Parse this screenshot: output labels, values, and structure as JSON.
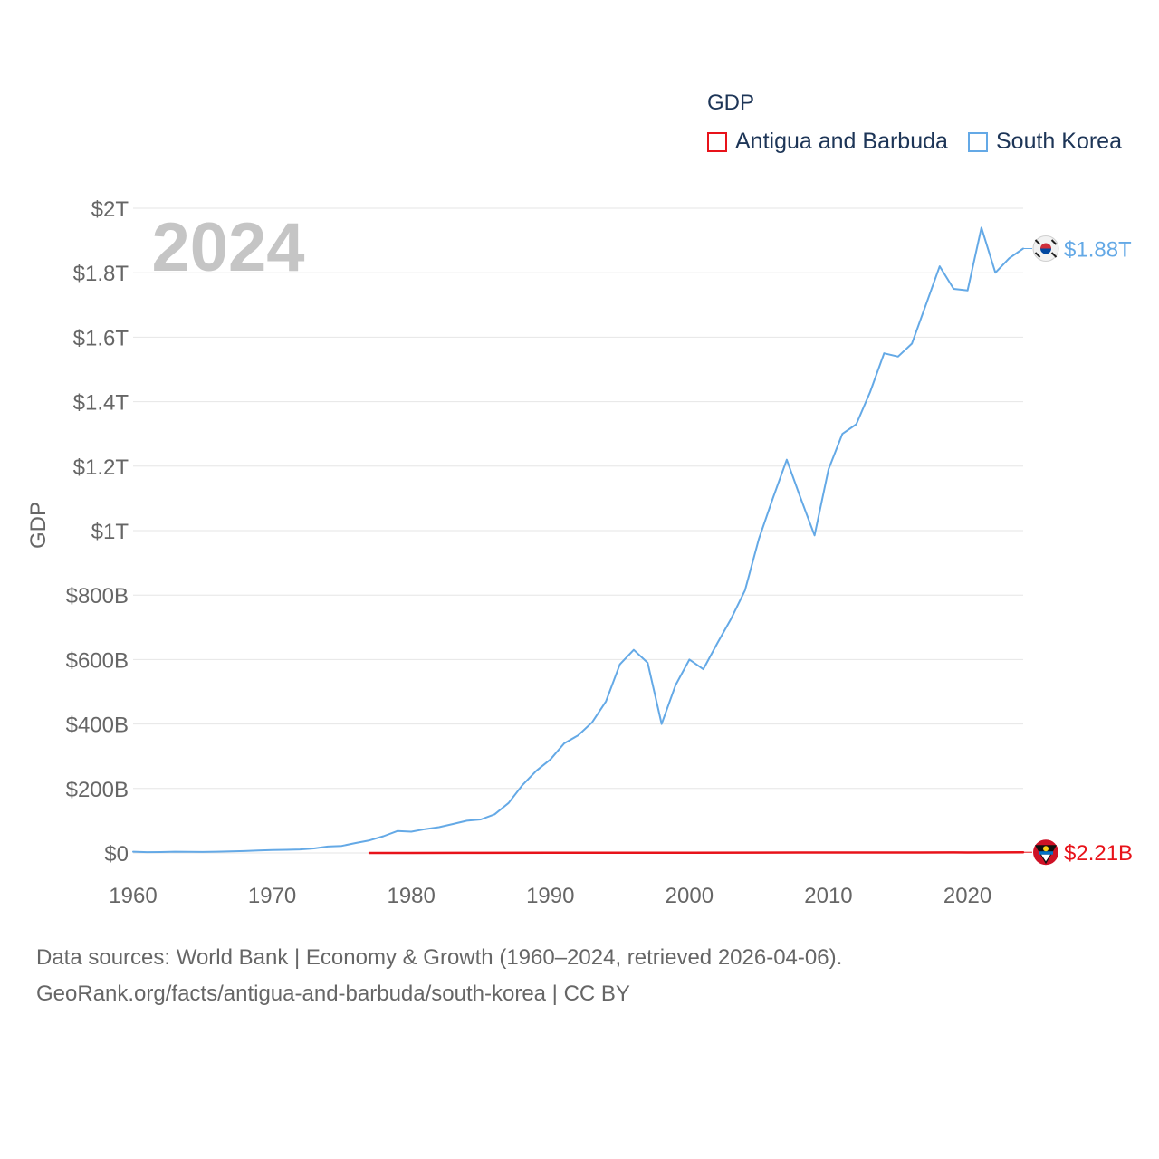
{
  "legend": {
    "title": "GDP",
    "items": [
      {
        "label": "Antigua and Barbuda",
        "color": "#e8131a"
      },
      {
        "label": "South Korea",
        "color": "#64a9e6"
      }
    ]
  },
  "year_label": "2024",
  "footer": {
    "line1": "Data sources: World Bank | Economy & Growth (1960–2024, retrieved 2026-04-06).",
    "line2": "GeoRank.org/facts/antigua-and-barbuda/south-korea | CC BY"
  },
  "chart_data": {
    "type": "line",
    "title": "",
    "xlabel": "",
    "ylabel": "GDP",
    "xlim": [
      1960,
      2024
    ],
    "ylim": [
      0,
      2000
    ],
    "units": "billion USD",
    "x_ticks": [
      1960,
      1970,
      1980,
      1990,
      2000,
      2010,
      2020
    ],
    "x_tick_labels": [
      "1960",
      "1970",
      "1980",
      "1990",
      "2000",
      "2010",
      "2020"
    ],
    "y_ticks": [
      0,
      200,
      400,
      600,
      800,
      1000,
      1200,
      1400,
      1600,
      1800,
      2000
    ],
    "y_tick_labels": [
      "$0",
      "$200B",
      "$400B",
      "$600B",
      "$800B",
      "$1T",
      "$1.2T",
      "$1.4T",
      "$1.6T",
      "$1.8T",
      "$2T"
    ],
    "grid": true,
    "series": [
      {
        "name": "South Korea",
        "color": "#64a9e6",
        "flag": "south-korea-flag-icon",
        "end_label": "$1.88T",
        "x": [
          1960,
          1961,
          1962,
          1963,
          1964,
          1965,
          1966,
          1967,
          1968,
          1969,
          1970,
          1971,
          1972,
          1973,
          1974,
          1975,
          1976,
          1977,
          1978,
          1979,
          1980,
          1981,
          1982,
          1983,
          1984,
          1985,
          1986,
          1987,
          1988,
          1989,
          1990,
          1991,
          1992,
          1993,
          1994,
          1995,
          1996,
          1997,
          1998,
          1999,
          2000,
          2001,
          2002,
          2003,
          2004,
          2005,
          2006,
          2007,
          2008,
          2009,
          2010,
          2011,
          2012,
          2013,
          2014,
          2015,
          2016,
          2017,
          2018,
          2019,
          2020,
          2021,
          2022,
          2023,
          2024
        ],
        "values": [
          4,
          2.4,
          2.8,
          4,
          3.5,
          3.1,
          3.9,
          5,
          6,
          7.5,
          9,
          9.9,
          11,
          14,
          20,
          22,
          31,
          39,
          52,
          68,
          66,
          74,
          80,
          90,
          100,
          104,
          120,
          155,
          211,
          255,
          290,
          340,
          365,
          405,
          470,
          585,
          630,
          590,
          400,
          520,
          600,
          570,
          650,
          727,
          815,
          975,
          1100,
          1220,
          1100,
          985,
          1190,
          1300,
          1330,
          1430,
          1550,
          1540,
          1580,
          1700,
          1820,
          1750,
          1745,
          1940,
          1800,
          1845,
          1875
        ]
      },
      {
        "name": "Antigua and Barbuda",
        "color": "#e8131a",
        "flag": "antigua-flag-icon",
        "end_label": "$2.21B",
        "x": [
          1977,
          1980,
          1985,
          1990,
          1995,
          2000,
          2005,
          2008,
          2010,
          2015,
          2019,
          2020,
          2024
        ],
        "values": [
          0.08,
          0.13,
          0.25,
          0.46,
          0.59,
          0.83,
          1.1,
          1.5,
          1.3,
          1.4,
          1.7,
          1.4,
          2.21
        ]
      }
    ]
  }
}
